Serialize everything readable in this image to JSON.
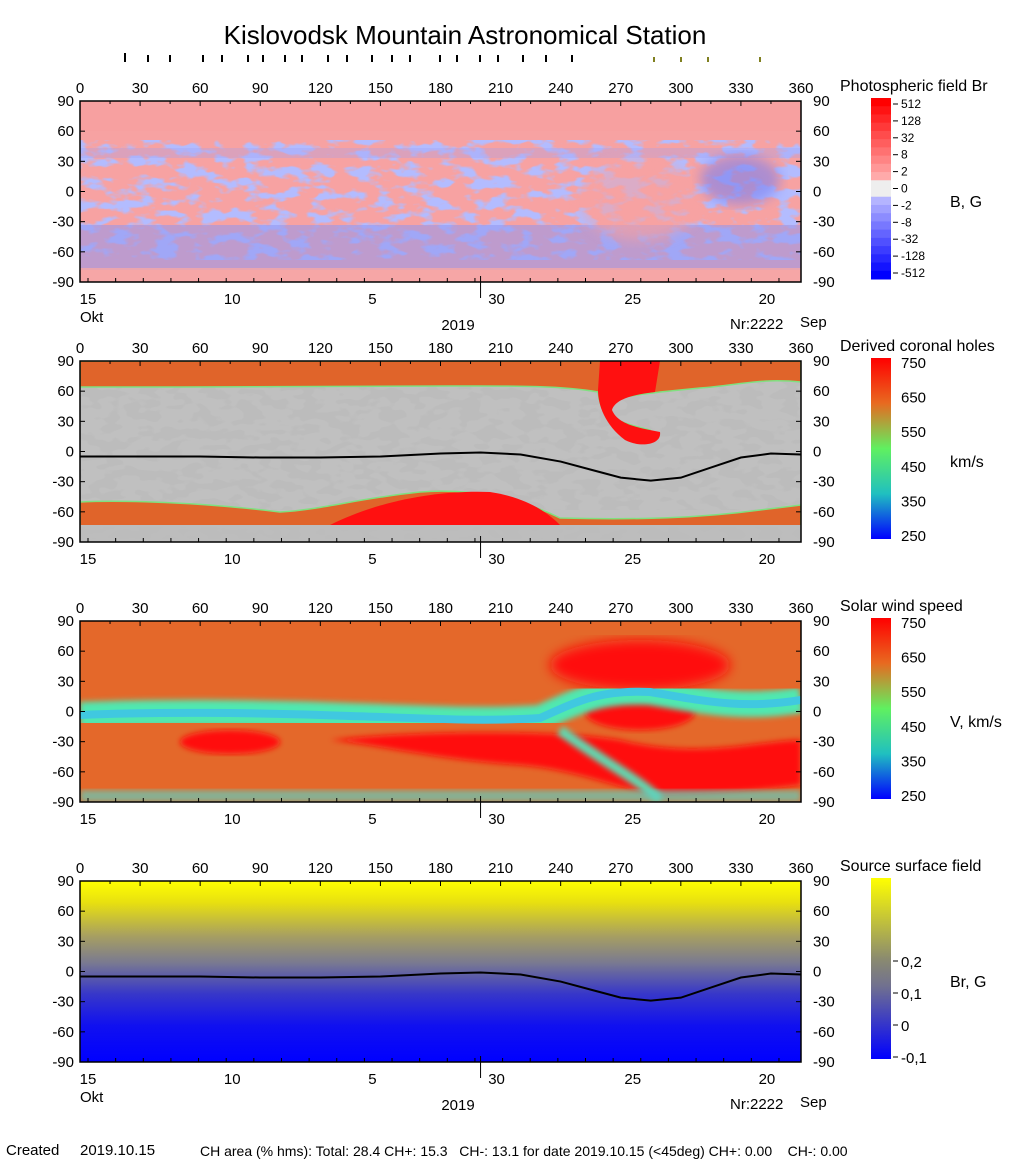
{
  "title": "Kislovodsk Mountain Astronomical Station",
  "created_label": "Created",
  "created_date": "2019.10.15",
  "ch_area_text": "CH area (% hms): Total: 28.4 CH+: 15.3   CH-: 13.1 for date 2019.10.15 (<45deg) CH+: 0.00    CH-: 0.00",
  "chart_data": [
    {
      "type": "heatmap",
      "title": "Photospheric field Br",
      "unit_label": "B, G",
      "xlim": [
        0,
        360
      ],
      "ylim": [
        -90,
        90
      ],
      "x_ticks": [
        "0",
        "30",
        "60",
        "90",
        "120",
        "150",
        "180",
        "210",
        "240",
        "270",
        "300",
        "330",
        "360"
      ],
      "y_ticks": [
        "90",
        "60",
        "30",
        "0",
        "-30",
        "-60",
        "-90"
      ],
      "colorbar_labels": [
        "512",
        "128",
        "32",
        "8",
        "2",
        "0",
        "-2",
        "-8",
        "-32",
        "-128",
        "-512"
      ],
      "colors": {
        "positive": "#ff0000",
        "negative": "#0000ff",
        "zero": "#eeeeee"
      }
    },
    {
      "type": "heatmap",
      "title": "Derived coronal holes",
      "unit_label": "km/s",
      "xlim": [
        0,
        360
      ],
      "ylim": [
        -90,
        90
      ],
      "x_ticks": [
        "0",
        "30",
        "60",
        "90",
        "120",
        "150",
        "180",
        "210",
        "240",
        "270",
        "300",
        "330",
        "360"
      ],
      "y_ticks": [
        "90",
        "60",
        "30",
        "0",
        "-30",
        "-60",
        "-90"
      ],
      "colorbar_labels": [
        "750",
        "650",
        "550",
        "450",
        "350",
        "250"
      ],
      "neutral_line": {
        "lon": [
          0,
          30,
          60,
          90,
          120,
          150,
          180,
          200,
          220,
          240,
          255,
          270,
          285,
          300,
          315,
          330,
          345,
          360
        ],
        "lat": [
          -5,
          -5,
          -5,
          -6,
          -6,
          -5,
          -2,
          -1,
          -3,
          -10,
          -18,
          -26,
          -29,
          -26,
          -16,
          -6,
          -2,
          -3
        ]
      }
    },
    {
      "type": "heatmap",
      "title": "Solar wind speed",
      "unit_label": "V, km/s",
      "xlim": [
        0,
        360
      ],
      "ylim": [
        -90,
        90
      ],
      "x_ticks": [
        "0",
        "30",
        "60",
        "90",
        "120",
        "150",
        "180",
        "210",
        "240",
        "270",
        "300",
        "330",
        "360"
      ],
      "y_ticks": [
        "90",
        "60",
        "30",
        "0",
        "-30",
        "-60",
        "-90"
      ],
      "colorbar_labels": [
        "750",
        "650",
        "550",
        "450",
        "350",
        "250"
      ]
    },
    {
      "type": "heatmap",
      "title": "Source surface field",
      "unit_label": "Br, G",
      "xlim": [
        0,
        360
      ],
      "ylim": [
        -90,
        90
      ],
      "x_ticks": [
        "0",
        "30",
        "60",
        "90",
        "120",
        "150",
        "180",
        "210",
        "240",
        "270",
        "300",
        "330",
        "360"
      ],
      "y_ticks": [
        "90",
        "60",
        "30",
        "0",
        "-30",
        "-60",
        "-90"
      ],
      "colorbar_labels": [
        "0,2",
        "0,1",
        "0",
        "-0,1"
      ],
      "neutral_line": {
        "lon": [
          0,
          30,
          60,
          90,
          120,
          150,
          180,
          200,
          220,
          240,
          255,
          270,
          285,
          300,
          315,
          330,
          345,
          360
        ],
        "lat": [
          -5,
          -5,
          -5,
          -6,
          -6,
          -5,
          -2,
          -1,
          -3,
          -10,
          -18,
          -26,
          -29,
          -26,
          -16,
          -6,
          -2,
          -3
        ]
      }
    }
  ],
  "date_axis": {
    "day_labels": [
      "15",
      "10",
      "5",
      "30",
      "25",
      "20"
    ],
    "month_left": "Okt",
    "month_right": "Sep",
    "year": "2019",
    "rotation": "Nr:2222"
  }
}
